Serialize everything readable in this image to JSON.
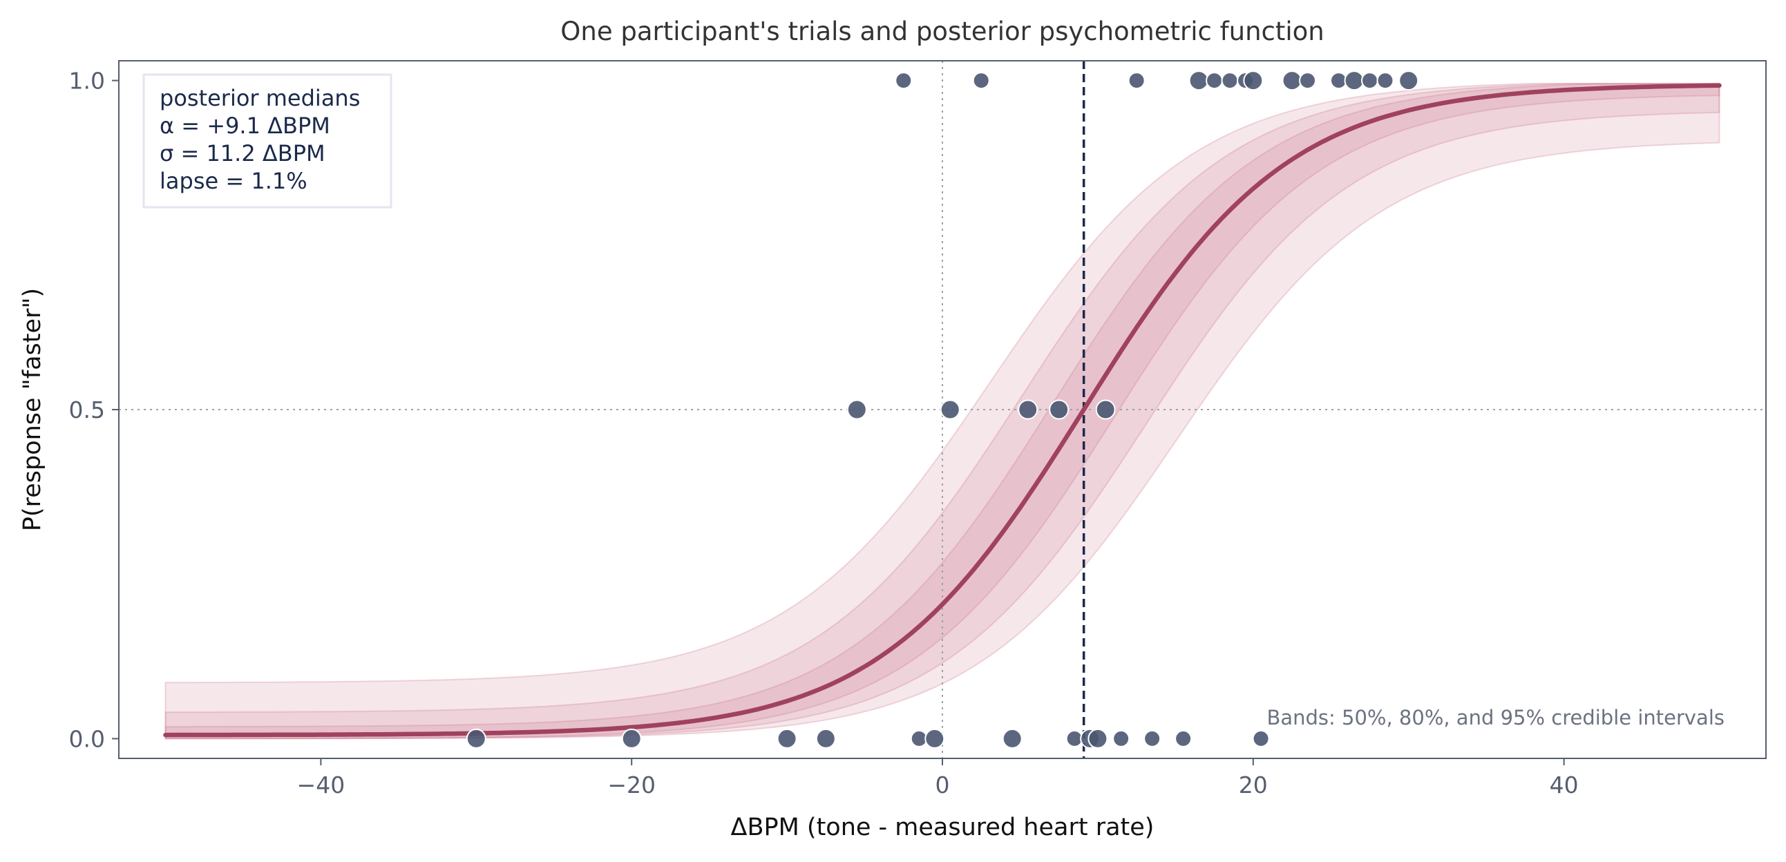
{
  "chart_data": {
    "type": "scatter",
    "title": "One participant's trials and posterior psychometric function",
    "xlabel": "ΔBPM (tone - measured heart rate)",
    "ylabel": "P(response \"faster\")",
    "xlim": [
      -53,
      53
    ],
    "ylim": [
      -0.03,
      1.03
    ],
    "x_ticks": [
      -40,
      -20,
      0,
      20,
      40
    ],
    "x_tick_labels": [
      "−40",
      "−20",
      "0",
      "20",
      "40"
    ],
    "y_ticks": [
      0.0,
      0.5,
      1.0
    ],
    "y_tick_labels": [
      "0.0",
      "0.5",
      "1.0"
    ],
    "grid": false,
    "reference_lines": {
      "vertical_dotted_x": 0,
      "horizontal_dotted_y": 0.5,
      "threshold_dashed_x": 9.1
    },
    "legend_box": {
      "position": "top-left",
      "lines": [
        "posterior medians",
        "α = +9.1 ΔBPM",
        "σ = 11.2 ΔBPM",
        "lapse = 1.1%"
      ]
    },
    "annotation": "Bands: 50%, 80%, and 95% credible intervals",
    "curve": {
      "x_range": [
        -50,
        50
      ],
      "alpha": 9.1,
      "sigma": 11.2,
      "lapse": 0.011,
      "bands": [
        {
          "level": "95%",
          "half_width_offset": 6.0,
          "lower_limit": 0.91,
          "upper_limit": 0.085
        },
        {
          "level": "80%",
          "half_width_offset": 4.0,
          "lower_limit": 0.955,
          "upper_limit": 0.04
        },
        {
          "level": "50%",
          "half_width_offset": 2.0,
          "lower_limit": 0.98,
          "upper_limit": 0.018
        }
      ]
    },
    "trials": [
      {
        "x": -2.5,
        "y": 1.0,
        "n": 1
      },
      {
        "x": 2.5,
        "y": 1.0,
        "n": 1
      },
      {
        "x": 12.5,
        "y": 1.0,
        "n": 1
      },
      {
        "x": 16.5,
        "y": 1.0,
        "n": 2
      },
      {
        "x": 17.5,
        "y": 1.0,
        "n": 1
      },
      {
        "x": 18.5,
        "y": 1.0,
        "n": 1
      },
      {
        "x": 19.5,
        "y": 1.0,
        "n": 1
      },
      {
        "x": 20.0,
        "y": 1.0,
        "n": 2
      },
      {
        "x": 22.5,
        "y": 1.0,
        "n": 2
      },
      {
        "x": 23.5,
        "y": 1.0,
        "n": 1
      },
      {
        "x": 25.5,
        "y": 1.0,
        "n": 1
      },
      {
        "x": 26.5,
        "y": 1.0,
        "n": 2
      },
      {
        "x": 27.5,
        "y": 1.0,
        "n": 1
      },
      {
        "x": 28.5,
        "y": 1.0,
        "n": 1
      },
      {
        "x": 30.0,
        "y": 1.0,
        "n": 2
      },
      {
        "x": -5.5,
        "y": 0.5,
        "n": 2
      },
      {
        "x": 0.5,
        "y": 0.5,
        "n": 2
      },
      {
        "x": 5.5,
        "y": 0.5,
        "n": 2
      },
      {
        "x": 7.5,
        "y": 0.5,
        "n": 2
      },
      {
        "x": 10.5,
        "y": 0.5,
        "n": 2
      },
      {
        "x": -30.0,
        "y": 0.0,
        "n": 2
      },
      {
        "x": -20.0,
        "y": 0.0,
        "n": 2
      },
      {
        "x": -10.0,
        "y": 0.0,
        "n": 2
      },
      {
        "x": -7.5,
        "y": 0.0,
        "n": 2
      },
      {
        "x": -1.5,
        "y": 0.0,
        "n": 1
      },
      {
        "x": -0.5,
        "y": 0.0,
        "n": 2
      },
      {
        "x": 4.5,
        "y": 0.0,
        "n": 2
      },
      {
        "x": 8.5,
        "y": 0.0,
        "n": 1
      },
      {
        "x": 9.5,
        "y": 0.0,
        "n": 2
      },
      {
        "x": 10.0,
        "y": 0.0,
        "n": 2
      },
      {
        "x": 11.5,
        "y": 0.0,
        "n": 1
      },
      {
        "x": 13.5,
        "y": 0.0,
        "n": 1
      },
      {
        "x": 15.5,
        "y": 0.0,
        "n": 1
      },
      {
        "x": 20.5,
        "y": 0.0,
        "n": 1
      }
    ],
    "colors": {
      "curve": "#a0425e",
      "band": "#c86b85",
      "points": "#4a5671",
      "threshold": "#1b2a4a",
      "axis": "#555e6e",
      "tick_text": "#555e6e",
      "annotation_text": "#6b7280",
      "legend_text": "#1b2a4a"
    }
  }
}
